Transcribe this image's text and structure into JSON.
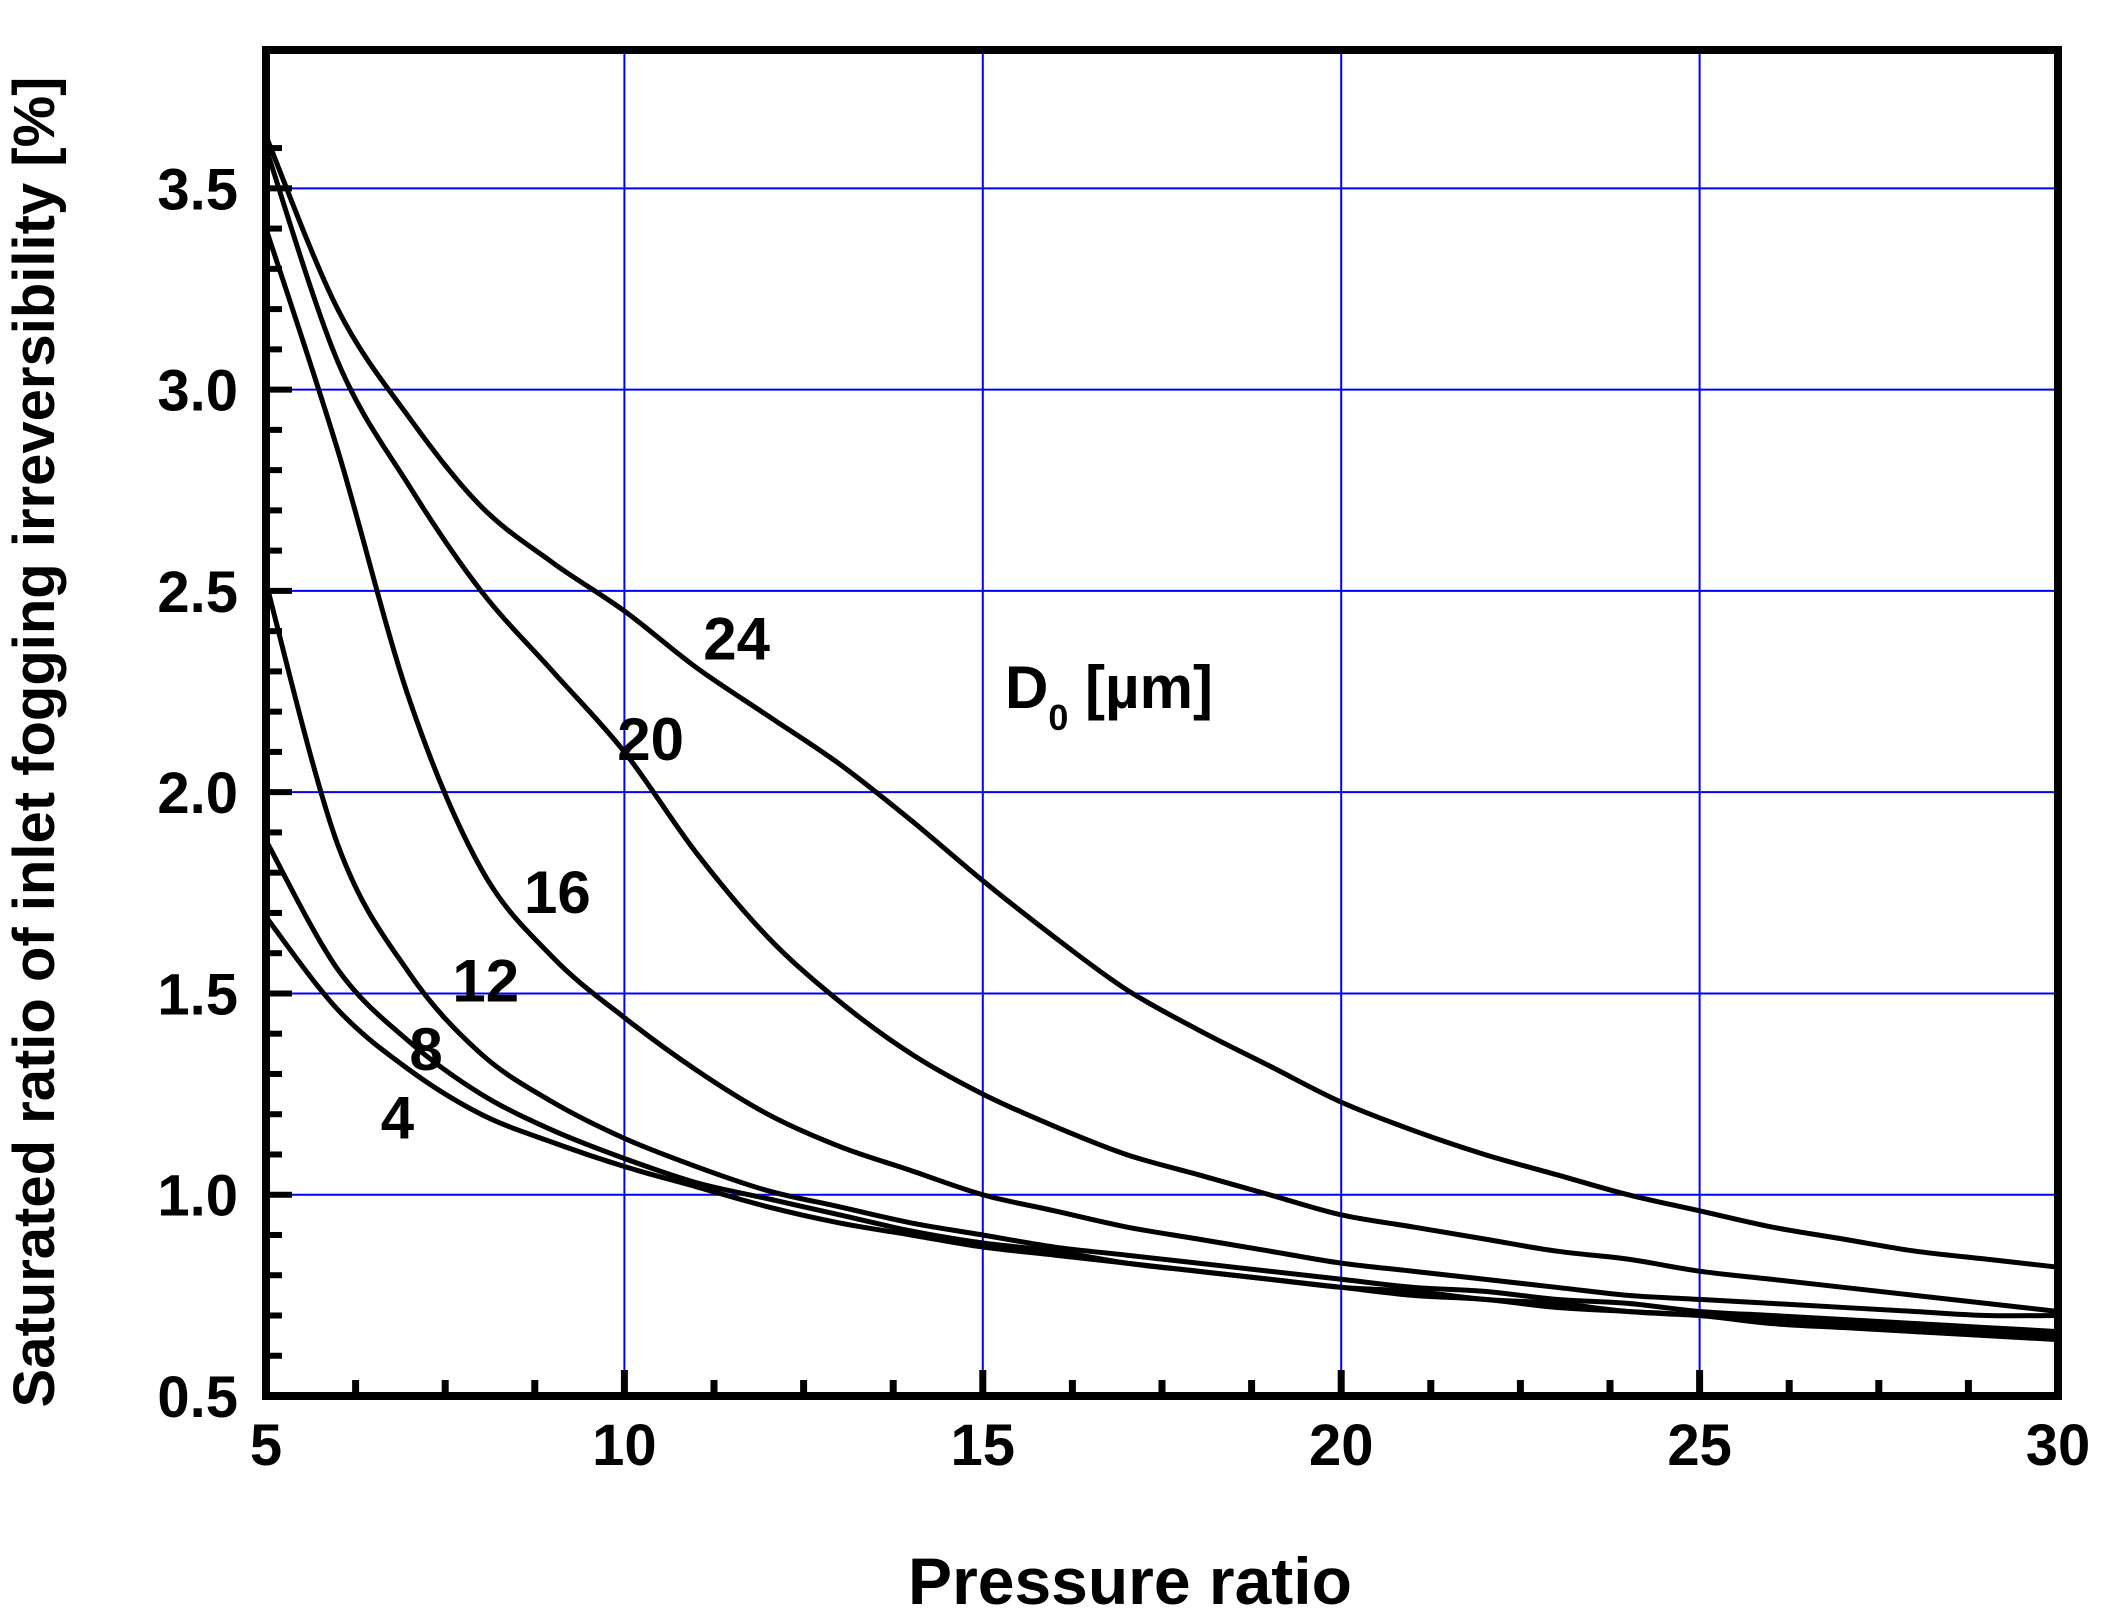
{
  "chart_data": {
    "type": "line",
    "title": "",
    "xlabel": "Pressure ratio",
    "ylabel": "Saturated ratio of inlet fogging irreversibility [%]",
    "xlim": [
      5,
      30
    ],
    "ylim": [
      0.5,
      3.7
    ],
    "xticks": [
      5,
      10,
      15,
      20,
      25,
      30
    ],
    "xtick_labels": [
      "5",
      "10",
      "15",
      "20",
      "25",
      "30"
    ],
    "yticks": [
      0.5,
      1.0,
      1.5,
      2.0,
      2.5,
      3.0,
      3.5
    ],
    "ytick_labels": [
      "0.5",
      "1.0",
      "1.5",
      "2.0",
      "2.5",
      "3.0",
      "3.5"
    ],
    "grid": true,
    "grid_color": "#0000ff",
    "line_color": "#000000",
    "legend_title": {
      "main": "D",
      "sub": "0",
      "unit": " [µm]"
    },
    "x": [
      5,
      6,
      7,
      8,
      9,
      10,
      11,
      12,
      13,
      14,
      15,
      16,
      17,
      18,
      19,
      20,
      21,
      22,
      23,
      24,
      25,
      26,
      27,
      28,
      29,
      30
    ],
    "series": [
      {
        "name": "4",
        "values": [
          1.69,
          1.46,
          1.31,
          1.2,
          1.13,
          1.07,
          1.02,
          0.97,
          0.93,
          0.9,
          0.87,
          0.85,
          0.83,
          0.81,
          0.79,
          0.77,
          0.75,
          0.74,
          0.72,
          0.71,
          0.7,
          0.68,
          0.67,
          0.66,
          0.65,
          0.64
        ]
      },
      {
        "name": "8",
        "values": [
          1.88,
          1.56,
          1.38,
          1.25,
          1.16,
          1.09,
          1.03,
          0.99,
          0.95,
          0.91,
          0.88,
          0.86,
          0.83,
          0.81,
          0.79,
          0.77,
          0.76,
          0.74,
          0.73,
          0.71,
          0.7,
          0.69,
          0.68,
          0.67,
          0.66,
          0.65
        ]
      },
      {
        "name": "12",
        "values": [
          2.52,
          1.87,
          1.55,
          1.35,
          1.23,
          1.14,
          1.07,
          1.01,
          0.97,
          0.93,
          0.9,
          0.87,
          0.85,
          0.83,
          0.81,
          0.79,
          0.77,
          0.76,
          0.74,
          0.73,
          0.71,
          0.7,
          0.69,
          0.68,
          0.67,
          0.66
        ]
      },
      {
        "name": "16",
        "values": [
          3.4,
          2.85,
          2.23,
          1.81,
          1.59,
          1.44,
          1.31,
          1.2,
          1.12,
          1.06,
          1.0,
          0.96,
          0.92,
          0.89,
          0.86,
          0.83,
          0.81,
          0.79,
          0.77,
          0.75,
          0.74,
          0.73,
          0.72,
          0.71,
          0.7,
          0.7
        ]
      },
      {
        "name": "20",
        "values": [
          3.6,
          3.07,
          2.76,
          2.5,
          2.3,
          2.1,
          1.85,
          1.64,
          1.48,
          1.35,
          1.25,
          1.17,
          1.1,
          1.05,
          1.0,
          0.95,
          0.92,
          0.89,
          0.86,
          0.84,
          0.81,
          0.79,
          0.77,
          0.75,
          0.73,
          0.71
        ]
      },
      {
        "name": "24",
        "values": [
          3.63,
          3.2,
          2.93,
          2.71,
          2.57,
          2.45,
          2.31,
          2.19,
          2.07,
          1.93,
          1.78,
          1.64,
          1.51,
          1.41,
          1.32,
          1.23,
          1.16,
          1.1,
          1.05,
          1.0,
          0.96,
          0.92,
          0.89,
          0.86,
          0.84,
          0.82
        ]
      }
    ],
    "annotations": [
      "24",
      "20",
      "16",
      "12",
      "8",
      "4"
    ]
  }
}
